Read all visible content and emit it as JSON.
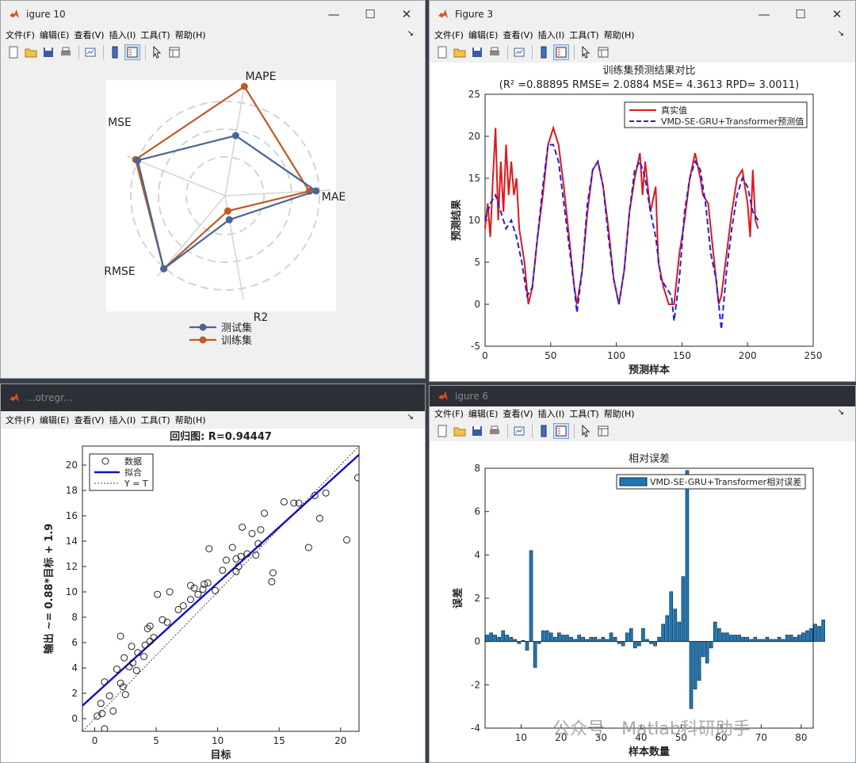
{
  "menu": [
    "文件(F)",
    "编辑(E)",
    "查看(V)",
    "插入(I)",
    "工具(T)",
    "帮助(H)"
  ],
  "win10": {
    "title": "igure 10"
  },
  "win3": {
    "title": "Figure 3"
  },
  "win_reg": {
    "title": "...otregr..."
  },
  "win6": {
    "title": "igure 6"
  },
  "radar": {
    "axes": [
      "MAE",
      "MAPE",
      "MSE",
      "RMSE",
      "R2"
    ],
    "legend": [
      "测试集",
      "训练集"
    ],
    "series": [
      {
        "name": "测试集",
        "color": "#4a6595",
        "values": [
          0.82,
          0.55,
          0.85,
          0.86,
          0.22
        ]
      },
      {
        "name": "训练集",
        "color": "#c05a24",
        "values": [
          0.76,
          1.0,
          0.87,
          0.86,
          0.14
        ]
      }
    ]
  },
  "chart_data": [
    {
      "type": "line",
      "title": "训练集预测结果对比",
      "subtitle": "(R² =0.88895  RMSE= 2.0884  MSE= 4.3613  RPD= 3.0011)",
      "xlabel": "预测样本",
      "ylabel": "预测结果",
      "xlim": [
        0,
        250
      ],
      "ylim": [
        -5,
        25
      ],
      "xticks": [
        "0",
        "50",
        "100",
        "150",
        "200",
        "250"
      ],
      "yticks": [
        "-5",
        "0",
        "5",
        "10",
        "15",
        "20",
        "25"
      ],
      "legend": "top-right",
      "series": [
        {
          "name": "真实值",
          "color": "#e0181c",
          "style": "solid",
          "points": [
            [
              0,
              9
            ],
            [
              2,
              12
            ],
            [
              4,
              8
            ],
            [
              6,
              15
            ],
            [
              8,
              21
            ],
            [
              10,
              10
            ],
            [
              12,
              17
            ],
            [
              14,
              11
            ],
            [
              16,
              19
            ],
            [
              18,
              13
            ],
            [
              20,
              17
            ],
            [
              22,
              13
            ],
            [
              24,
              15
            ],
            [
              26,
              9
            ],
            [
              30,
              5
            ],
            [
              33,
              0
            ],
            [
              36,
              2
            ],
            [
              40,
              8
            ],
            [
              44,
              13
            ],
            [
              48,
              19
            ],
            [
              52,
              21
            ],
            [
              56,
              19
            ],
            [
              60,
              14
            ],
            [
              64,
              8
            ],
            [
              68,
              2
            ],
            [
              70,
              0
            ],
            [
              74,
              4
            ],
            [
              78,
              11
            ],
            [
              82,
              16
            ],
            [
              86,
              17
            ],
            [
              90,
              14
            ],
            [
              94,
              9
            ],
            [
              98,
              3
            ],
            [
              102,
              0
            ],
            [
              106,
              4
            ],
            [
              110,
              11
            ],
            [
              114,
              15
            ],
            [
              118,
              18
            ],
            [
              120,
              13
            ],
            [
              122,
              17
            ],
            [
              126,
              11
            ],
            [
              130,
              14
            ],
            [
              132,
              5
            ],
            [
              136,
              2
            ],
            [
              140,
              0
            ],
            [
              144,
              0
            ],
            [
              148,
              6
            ],
            [
              152,
              10
            ],
            [
              156,
              15
            ],
            [
              160,
              18
            ],
            [
              164,
              15
            ],
            [
              166,
              13
            ],
            [
              170,
              12
            ],
            [
              174,
              6
            ],
            [
              178,
              0
            ],
            [
              180,
              1
            ],
            [
              184,
              6
            ],
            [
              188,
              11
            ],
            [
              192,
              15
            ],
            [
              196,
              16
            ],
            [
              200,
              12
            ],
            [
              202,
              8
            ],
            [
              204,
              16
            ],
            [
              206,
              10
            ],
            [
              208,
              9
            ]
          ]
        },
        {
          "name": "VMD-SE-GRU+Transformer预测值",
          "color": "#1f22e0",
          "style": "dashed",
          "points": [
            [
              0,
              10
            ],
            [
              4,
              12
            ],
            [
              8,
              13
            ],
            [
              12,
              11
            ],
            [
              16,
              9
            ],
            [
              20,
              10
            ],
            [
              24,
              8
            ],
            [
              28,
              5
            ],
            [
              32,
              1
            ],
            [
              36,
              2
            ],
            [
              40,
              8
            ],
            [
              44,
              14
            ],
            [
              48,
              19
            ],
            [
              52,
              19
            ],
            [
              56,
              17
            ],
            [
              60,
              12
            ],
            [
              64,
              7
            ],
            [
              68,
              2
            ],
            [
              70,
              -1
            ],
            [
              74,
              4
            ],
            [
              78,
              12
            ],
            [
              82,
              16
            ],
            [
              86,
              17
            ],
            [
              90,
              14
            ],
            [
              94,
              8
            ],
            [
              98,
              3
            ],
            [
              102,
              0
            ],
            [
              106,
              4
            ],
            [
              110,
              11
            ],
            [
              114,
              16
            ],
            [
              118,
              17
            ],
            [
              122,
              15
            ],
            [
              126,
              11
            ],
            [
              130,
              8
            ],
            [
              134,
              3
            ],
            [
              138,
              2
            ],
            [
              142,
              1
            ],
            [
              144,
              -2
            ],
            [
              148,
              3
            ],
            [
              152,
              11
            ],
            [
              156,
              15
            ],
            [
              160,
              17
            ],
            [
              164,
              16
            ],
            [
              168,
              12
            ],
            [
              172,
              6
            ],
            [
              176,
              3
            ],
            [
              180,
              -3
            ],
            [
              184,
              4
            ],
            [
              188,
              9
            ],
            [
              192,
              13
            ],
            [
              196,
              15
            ],
            [
              200,
              14
            ],
            [
              204,
              11
            ],
            [
              208,
              10
            ]
          ]
        }
      ]
    },
    {
      "type": "scatter",
      "title": "回归图: R=0.94447",
      "xlabel": "目标",
      "ylabel": "输出 ~= 0.88*目标 + 1.9",
      "xlim": [
        -1,
        21.5
      ],
      "ylim": [
        -1,
        21.5
      ],
      "xticks": [
        "0",
        "5",
        "10",
        "15",
        "20"
      ],
      "yticks": [
        "0",
        "2",
        "4",
        "6",
        "8",
        "10",
        "12",
        "14",
        "16",
        "18",
        "20"
      ],
      "legend": [
        "数据",
        "拟合",
        "Y = T"
      ],
      "fit": {
        "slope": 0.88,
        "intercept": 1.9
      },
      "points": [
        [
          0.2,
          0.2
        ],
        [
          0.6,
          0.4
        ],
        [
          0.8,
          -0.8
        ],
        [
          0.5,
          1.2
        ],
        [
          0.8,
          2.9
        ],
        [
          1.2,
          1.8
        ],
        [
          1.5,
          0.6
        ],
        [
          1.8,
          3.9
        ],
        [
          2.1,
          2.8
        ],
        [
          2.1,
          6.5
        ],
        [
          2.3,
          2.5
        ],
        [
          2.4,
          4.8
        ],
        [
          2.5,
          1.9
        ],
        [
          2.8,
          4.1
        ],
        [
          3.1,
          4.4
        ],
        [
          3.0,
          5.7
        ],
        [
          3.4,
          3.8
        ],
        [
          3.5,
          5.2
        ],
        [
          4.0,
          4.9
        ],
        [
          4.1,
          5.8
        ],
        [
          4.5,
          6.1
        ],
        [
          4.3,
          7.1
        ],
        [
          4.5,
          7.3
        ],
        [
          4.8,
          6.4
        ],
        [
          5.1,
          9.8
        ],
        [
          5.5,
          7.8
        ],
        [
          5.9,
          7.6
        ],
        [
          6.1,
          10.0
        ],
        [
          6.8,
          8.6
        ],
        [
          7.2,
          8.9
        ],
        [
          7.8,
          9.4
        ],
        [
          7.8,
          10.5
        ],
        [
          8.1,
          10.3
        ],
        [
          8.4,
          9.8
        ],
        [
          8.8,
          10.2
        ],
        [
          8.9,
          10.6
        ],
        [
          9.2,
          10.7
        ],
        [
          9.3,
          13.4
        ],
        [
          9.8,
          10.1
        ],
        [
          10.4,
          11.7
        ],
        [
          10.7,
          12.5
        ],
        [
          11.2,
          13.5
        ],
        [
          11.5,
          11.6
        ],
        [
          11.5,
          12.6
        ],
        [
          11.7,
          12.0
        ],
        [
          11.9,
          12.8
        ],
        [
          12.0,
          15.1
        ],
        [
          12.4,
          13.0
        ],
        [
          12.8,
          14.6
        ],
        [
          13.3,
          13.8
        ],
        [
          13.5,
          14.9
        ],
        [
          13.1,
          12.9
        ],
        [
          13.8,
          16.2
        ],
        [
          14.4,
          10.8
        ],
        [
          14.5,
          11.5
        ],
        [
          15.4,
          17.1
        ],
        [
          16.2,
          17.0
        ],
        [
          16.6,
          17.0
        ],
        [
          17.4,
          13.5
        ],
        [
          17.9,
          17.6
        ],
        [
          18.3,
          15.8
        ],
        [
          18.8,
          17.8
        ],
        [
          20.5,
          14.1
        ],
        [
          21.4,
          19.0
        ]
      ]
    },
    {
      "type": "bar",
      "title": "相对误差",
      "xlabel": "样本数量",
      "ylabel": "误差",
      "xlim": [
        1,
        83
      ],
      "ylim": [
        -4,
        8
      ],
      "xticks": [
        "10",
        "20",
        "30",
        "40",
        "50",
        "60",
        "70",
        "80"
      ],
      "yticks": [
        "-4",
        "-2",
        "0",
        "2",
        "4",
        "6",
        "8"
      ],
      "legend": [
        "VMD-SE-GRU+Transformer相对误差"
      ],
      "values": [
        0.3,
        0.4,
        0.3,
        0.2,
        0.5,
        0.3,
        0.2,
        0.1,
        -0.1,
        0.05,
        -0.4,
        4.2,
        -1.2,
        -0.1,
        0.5,
        0.5,
        0.4,
        0.2,
        0.4,
        0.3,
        0.3,
        0.2,
        0.1,
        0.3,
        0.2,
        0.1,
        0.2,
        0.2,
        0.1,
        0.2,
        0.1,
        0.4,
        0.2,
        -0.1,
        -0.2,
        0.4,
        0.6,
        -0.3,
        -0.2,
        0.6,
        0.1,
        -0.1,
        -0.2,
        0.2,
        0.8,
        1.2,
        2.3,
        1.5,
        0.9,
        3.0,
        7.9,
        -3.1,
        -2.2,
        -1.8,
        -0.7,
        -1.0,
        -0.3,
        0.9,
        0.6,
        0.4,
        0.4,
        0.3,
        0.3,
        0.3,
        0.2,
        0.2,
        0.1,
        0.2,
        0.1,
        0.1,
        0.2,
        0.1,
        0.1,
        0.2,
        0.1,
        0.3,
        0.3,
        0.2,
        0.3,
        0.4,
        0.5,
        0.6,
        0.8,
        0.7,
        1.0
      ]
    }
  ],
  "watermark": "公众号 · Matlab科研助手"
}
